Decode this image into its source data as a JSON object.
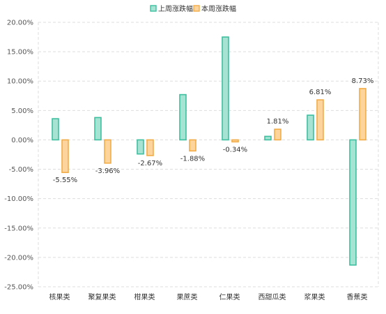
{
  "chart_data": {
    "type": "bar",
    "categories": [
      "核果类",
      "聚复果类",
      "柑果类",
      "果蔗类",
      "仁果类",
      "西甜瓜类",
      "浆果类",
      "香蕉类"
    ],
    "series": [
      {
        "name": "上周涨跌幅",
        "values": [
          3.6,
          3.8,
          -2.4,
          7.7,
          17.5,
          0.6,
          4.2,
          -21.3
        ],
        "color": "#3dbf9f",
        "fill": "#a7e3d3",
        "labels": [
          "",
          "",
          "",
          "",
          "",
          "",
          "",
          ""
        ]
      },
      {
        "name": "本周涨跌幅",
        "values": [
          -5.55,
          -3.96,
          -2.67,
          -1.88,
          -0.34,
          1.81,
          6.81,
          8.73
        ],
        "color": "#f2ac47",
        "fill": "#fdd59c",
        "labels": [
          "-5.55%",
          "-3.96%",
          "-2.67%",
          "-1.88%",
          "-0.34%",
          "1.81%",
          "6.81%",
          "8.73%"
        ]
      }
    ],
    "ylim": [
      -25,
      20
    ],
    "yticks": [
      20,
      15,
      10,
      5,
      0,
      -5,
      -10,
      -15,
      -20,
      -25
    ],
    "ytick_labels": [
      "20.00%",
      "15.00%",
      "10.00%",
      "5.00%",
      "0.00%",
      "-5.00%",
      "-10.00%",
      "-15.00%",
      "-20.00%",
      "-25.00%"
    ],
    "grid": true,
    "legend_position": "top-center"
  }
}
